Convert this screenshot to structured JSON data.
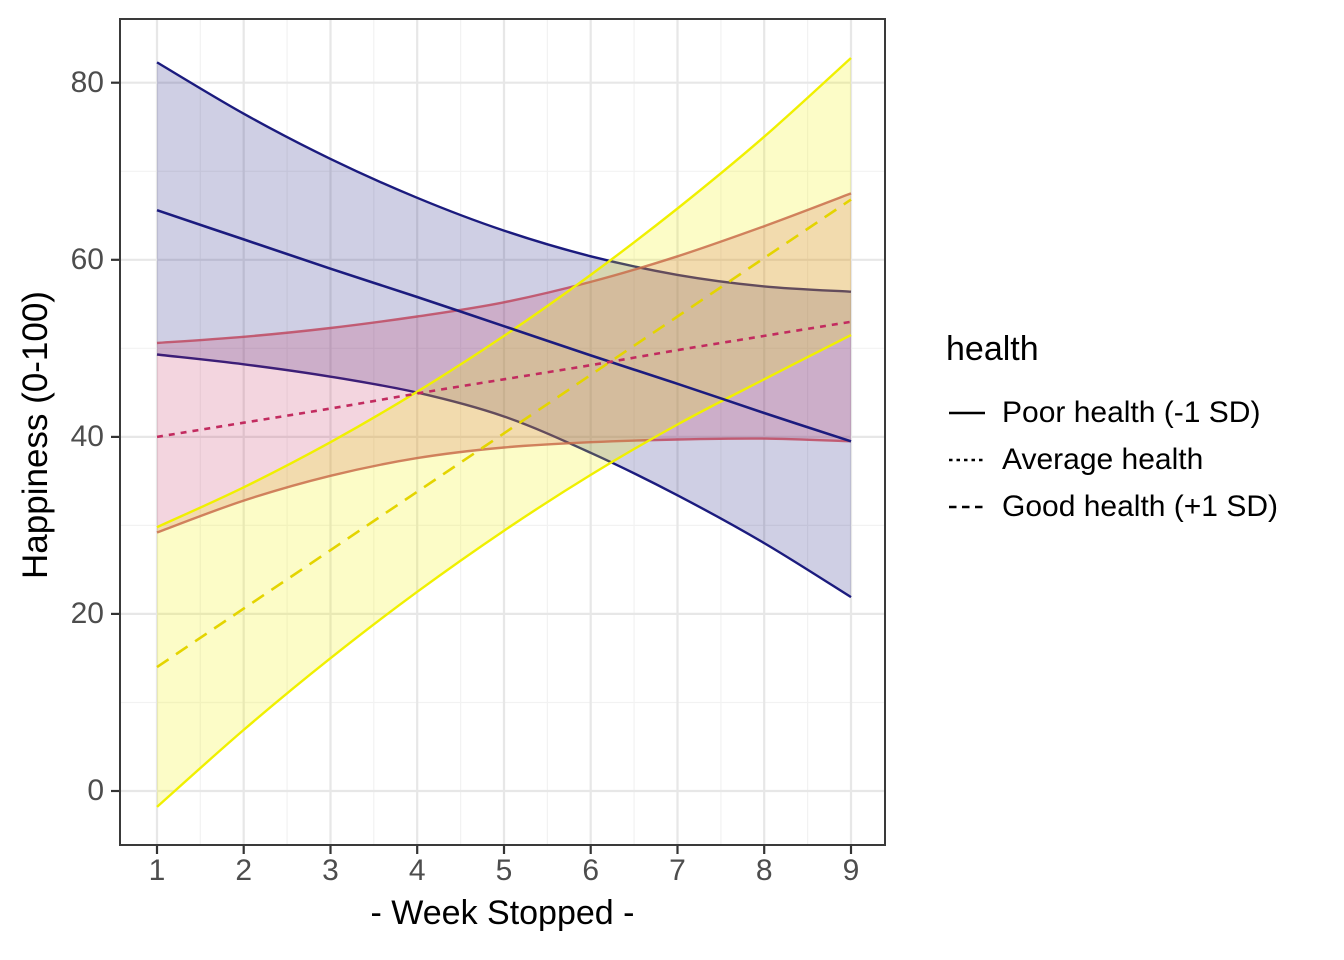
{
  "figure": {
    "background": "#FFFFFF"
  },
  "theme": {
    "grid_major_color": "#E7E7E7",
    "grid_minor_color": "#F2F2F2",
    "panel_border_color": "#3A3A3A",
    "tick_mark_color": "#333333",
    "tick_text_color": "#4D4D4D",
    "text_color": "#000000"
  },
  "axes": {
    "x": {
      "title": "- Week Stopped -",
      "ticks": [
        1,
        2,
        3,
        4,
        5,
        6,
        7,
        8,
        9
      ],
      "tick_labels": [
        "1",
        "2",
        "3",
        "4",
        "5",
        "6",
        "7",
        "8",
        "9"
      ],
      "minor_ticks": [
        1.5,
        2.5,
        3.5,
        4.5,
        5.5,
        6.5,
        7.5,
        8.5
      ]
    },
    "y": {
      "title": "Happiness (0-100)",
      "ticks": [
        0,
        20,
        40,
        60,
        80
      ],
      "tick_labels": [
        "0",
        "20",
        "40",
        "60",
        "80"
      ],
      "minor_ticks": [
        10,
        30,
        50,
        70
      ]
    }
  },
  "legend": {
    "title": "health",
    "position": "right",
    "items": [
      {
        "label": "Poor health (-1 SD)",
        "linetype": "solid"
      },
      {
        "label": "Average health",
        "linetype": "dotted"
      },
      {
        "label": "Good health (+1 SD)",
        "linetype": "dashed"
      }
    ]
  },
  "chart_data": {
    "type": "line",
    "title": "",
    "xlabel": "- Week Stopped -",
    "ylabel": "Happiness (0-100)",
    "x": [
      1,
      2,
      3,
      4,
      5,
      6,
      7,
      8,
      9
    ],
    "xlim": [
      0.574,
      9.392
    ],
    "ylim": [
      -6.1,
      87.2
    ],
    "grid": "on",
    "legend_position": "right",
    "series": [
      {
        "name": "Poor health (-1 SD)",
        "key": "poor",
        "linetype": "solid",
        "line_color": "#1B1B7E",
        "edge_color": "#1B1B7E",
        "edge_opacity": 1,
        "fill_color": "#1B1B7E",
        "fill_opacity": 0.21,
        "fit": [
          65.6,
          62.3,
          59.0,
          55.8,
          52.5,
          49.2,
          46.0,
          42.7,
          39.5
        ],
        "ci_upper": [
          82.3,
          76.5,
          71.4,
          67.0,
          63.3,
          60.4,
          58.3,
          57.0,
          56.4
        ],
        "ci_lower": [
          49.3,
          48.2,
          46.8,
          45.0,
          42.3,
          38.2,
          33.4,
          28.0,
          21.9
        ]
      },
      {
        "name": "Average health",
        "key": "average",
        "linetype": "dotted",
        "line_color": "#C22B5F",
        "edge_color": "#BE4A62",
        "edge_opacity": 0.85,
        "fill_color": "#C22B5F",
        "fill_opacity": 0.2,
        "fit": [
          40.0,
          41.6,
          43.2,
          44.9,
          46.5,
          48.1,
          49.8,
          51.4,
          53.0
        ],
        "ci_upper": [
          50.6,
          51.3,
          52.3,
          53.6,
          55.2,
          57.5,
          60.4,
          63.8,
          67.5
        ],
        "ci_lower": [
          29.2,
          32.8,
          35.6,
          37.6,
          38.8,
          39.4,
          39.7,
          39.8,
          39.5
        ]
      },
      {
        "name": "Good health (+1 SD)",
        "key": "good",
        "linetype": "dashed",
        "line_color": "#E4D400",
        "edge_color": "#F0F000",
        "edge_opacity": 1,
        "fill_color": "#F0F000",
        "fill_opacity": 0.22,
        "fit": [
          14.0,
          20.6,
          27.2,
          33.8,
          40.4,
          47.0,
          53.6,
          60.2,
          66.8
        ],
        "ci_upper": [
          29.8,
          34.3,
          39.4,
          45.1,
          51.4,
          58.3,
          65.8,
          73.9,
          82.8
        ],
        "ci_lower": [
          -1.8,
          6.9,
          15.0,
          22.5,
          29.4,
          35.7,
          41.4,
          46.5,
          51.5
        ]
      }
    ]
  }
}
